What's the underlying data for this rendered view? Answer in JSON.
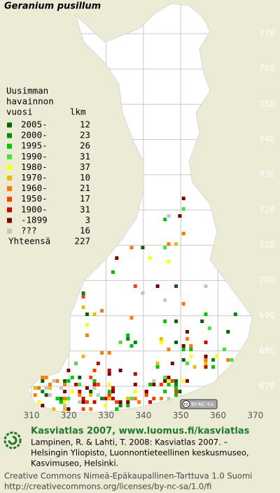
{
  "title": "Geranium pusillum",
  "legend": {
    "heading": [
      "Uusimman",
      "havainnon",
      "vuosi"
    ],
    "count_heading": "lkm",
    "rows": [
      {
        "label": "2005-",
        "count": "12",
        "color": "#006400"
      },
      {
        "label": "2000-",
        "count": "23",
        "color": "#008c00"
      },
      {
        "label": "1995-",
        "count": "26",
        "color": "#00c800"
      },
      {
        "label": "1990-",
        "count": "31",
        "color": "#3ce63c"
      },
      {
        "label": "1980-",
        "count": "37",
        "color": "#ffff00"
      },
      {
        "label": "1970-",
        "count": "10",
        "color": "#e6c000"
      },
      {
        "label": "1960-",
        "count": "21",
        "color": "#ff7800"
      },
      {
        "label": "1950-",
        "count": "17",
        "color": "#ff3c00"
      },
      {
        "label": "1900-",
        "count": "31",
        "color": "#d20000"
      },
      {
        "label": "-1899",
        "count": "3",
        "color": "#800000"
      },
      {
        "label": "???",
        "count": "16",
        "color": "#c4c4c4"
      }
    ],
    "total_label": "Yhteensä",
    "total": "227"
  },
  "axes": {
    "x_labels": [
      "310",
      "320",
      "330",
      "340",
      "350",
      "360",
      "370"
    ],
    "y_labels": [
      "770",
      "760",
      "750",
      "740",
      "730",
      "720",
      "710",
      "700",
      "690",
      "680",
      "670"
    ]
  },
  "license_badge": "BY-NC-SA",
  "footer": {
    "headline": "Kasviatlas 2007, www.luomus.fi/kasviatlas",
    "citation": [
      "Lampinen, R. & Lahti, T. 2008: Kasviatlas 2007. –",
      "Helsingin Yliopisto, Luonnontieteellinen keskusmuseo,",
      "Kasvimuseo, Helsinki."
    ],
    "license": [
      "Creative Commons Nimeä-Epäkaupallinen-Tarttuva 1.0 Suomi",
      "http://creativecommons.org/licenses/by-nc-sa/1.0/fi"
    ]
  }
}
